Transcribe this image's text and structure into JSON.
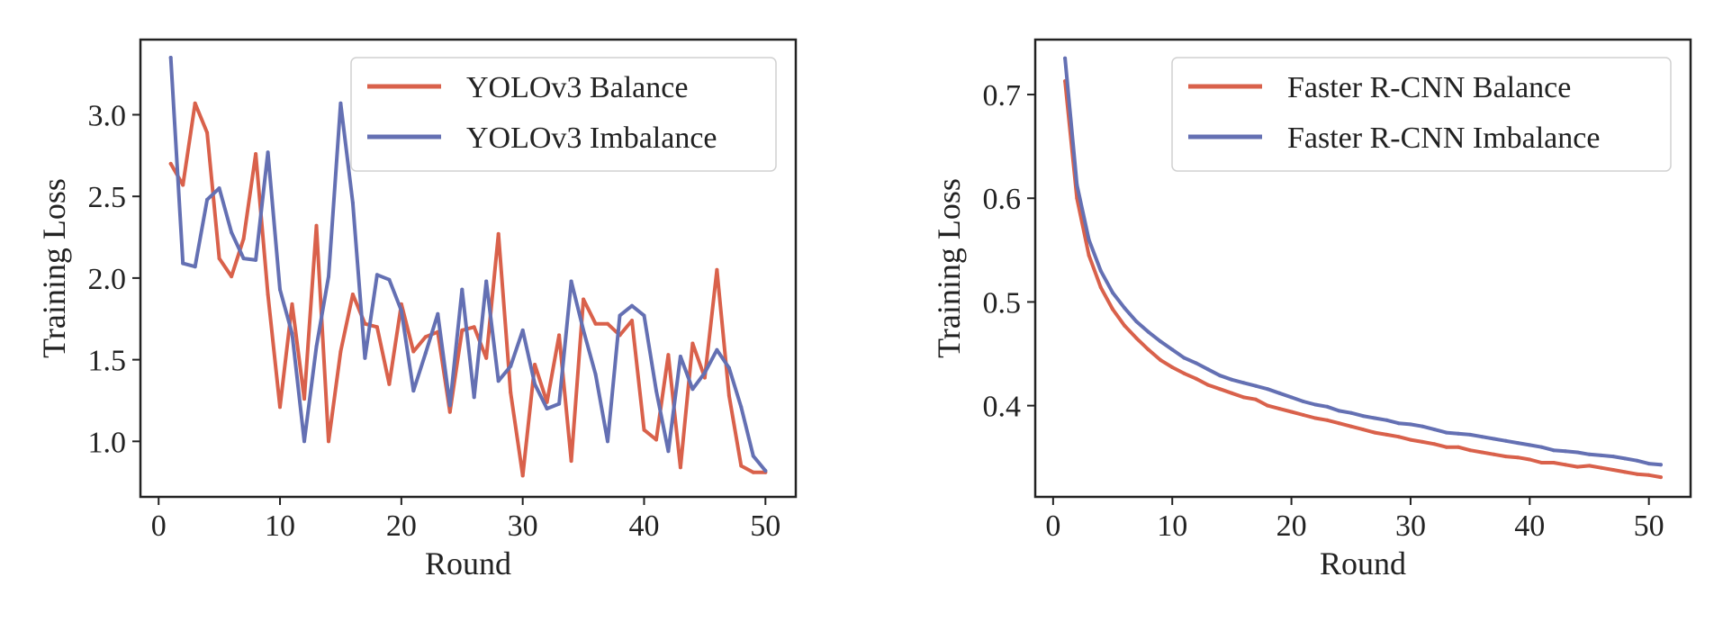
{
  "chart_data": [
    {
      "type": "line",
      "title": "",
      "xlabel": "Round",
      "ylabel": "Training Loss",
      "xlim": [
        -1.5,
        52.5
      ],
      "ylim": [
        0.66,
        3.46
      ],
      "xticks": [
        0,
        10,
        20,
        30,
        40,
        50
      ],
      "xtick_labels": [
        "0",
        "10",
        "20",
        "30",
        "40",
        "50"
      ],
      "yticks": [
        1.0,
        1.5,
        2.0,
        2.5,
        3.0
      ],
      "ytick_labels": [
        "1.0",
        "1.5",
        "2.0",
        "2.5",
        "3.0"
      ],
      "grid": false,
      "legend_position": "top-right",
      "series": [
        {
          "name": "YOLOv3 Balance",
          "color": "#d9614b",
          "x": [
            1,
            2,
            3,
            4,
            5,
            6,
            7,
            8,
            9,
            10,
            11,
            12,
            13,
            14,
            15,
            16,
            17,
            18,
            19,
            20,
            21,
            22,
            23,
            24,
            25,
            26,
            27,
            28,
            29,
            30,
            31,
            32,
            33,
            34,
            35,
            36,
            37,
            38,
            39,
            40,
            41,
            42,
            43,
            44,
            45,
            46,
            47,
            48,
            49,
            50
          ],
          "values": [
            2.7,
            2.57,
            3.07,
            2.89,
            2.12,
            2.01,
            2.24,
            2.76,
            1.9,
            1.21,
            1.84,
            1.26,
            2.32,
            1.0,
            1.55,
            1.9,
            1.72,
            1.7,
            1.35,
            1.84,
            1.55,
            1.64,
            1.67,
            1.18,
            1.68,
            1.7,
            1.51,
            2.27,
            1.3,
            0.79,
            1.47,
            1.24,
            1.65,
            0.88,
            1.87,
            1.72,
            1.72,
            1.65,
            1.74,
            1.07,
            1.01,
            1.53,
            0.84,
            1.6,
            1.39,
            2.05,
            1.28,
            0.85,
            0.81,
            0.81
          ]
        },
        {
          "name": "YOLOv3 Imbalance",
          "color": "#6470b3",
          "x": [
            1,
            2,
            3,
            4,
            5,
            6,
            7,
            8,
            9,
            10,
            11,
            12,
            13,
            14,
            15,
            16,
            17,
            18,
            19,
            20,
            21,
            22,
            23,
            24,
            25,
            26,
            27,
            28,
            29,
            30,
            31,
            32,
            33,
            34,
            35,
            36,
            37,
            38,
            39,
            40,
            41,
            42,
            43,
            44,
            45,
            46,
            47,
            48,
            49,
            50
          ],
          "values": [
            3.35,
            2.09,
            2.07,
            2.48,
            2.55,
            2.28,
            2.12,
            2.11,
            2.77,
            1.93,
            1.66,
            1.0,
            1.58,
            2.01,
            3.07,
            2.46,
            1.51,
            2.02,
            1.99,
            1.8,
            1.31,
            1.54,
            1.78,
            1.22,
            1.93,
            1.27,
            1.98,
            1.37,
            1.46,
            1.68,
            1.35,
            1.2,
            1.23,
            1.98,
            1.68,
            1.41,
            1.0,
            1.77,
            1.83,
            1.77,
            1.31,
            0.94,
            1.52,
            1.32,
            1.42,
            1.56,
            1.45,
            1.21,
            0.91,
            0.82
          ]
        }
      ]
    },
    {
      "type": "line",
      "title": "",
      "xlabel": "Round",
      "ylabel": "Training Loss",
      "xlim": [
        -1.5,
        53.5
      ],
      "ylim": [
        0.312,
        0.753
      ],
      "xticks": [
        0,
        10,
        20,
        30,
        40,
        50
      ],
      "xtick_labels": [
        "0",
        "10",
        "20",
        "30",
        "40",
        "50"
      ],
      "yticks": [
        0.4,
        0.5,
        0.6,
        0.7
      ],
      "ytick_labels": [
        "0.4",
        "0.5",
        "0.6",
        "0.7"
      ],
      "grid": false,
      "legend_position": "top-right",
      "series": [
        {
          "name": "Faster R-CNN Balance",
          "color": "#d9614b",
          "x": [
            1,
            2,
            3,
            4,
            5,
            6,
            7,
            8,
            9,
            10,
            11,
            12,
            13,
            14,
            15,
            16,
            17,
            18,
            19,
            20,
            21,
            22,
            23,
            24,
            25,
            26,
            27,
            28,
            29,
            30,
            31,
            32,
            33,
            34,
            35,
            36,
            37,
            38,
            39,
            40,
            41,
            42,
            43,
            44,
            45,
            46,
            47,
            48,
            49,
            50,
            51
          ],
          "values": [
            0.713,
            0.6,
            0.545,
            0.514,
            0.493,
            0.477,
            0.465,
            0.454,
            0.444,
            0.437,
            0.431,
            0.426,
            0.42,
            0.416,
            0.412,
            0.408,
            0.406,
            0.4,
            0.397,
            0.394,
            0.391,
            0.388,
            0.386,
            0.383,
            0.38,
            0.377,
            0.374,
            0.372,
            0.37,
            0.367,
            0.365,
            0.363,
            0.36,
            0.36,
            0.357,
            0.355,
            0.353,
            0.351,
            0.35,
            0.348,
            0.345,
            0.345,
            0.343,
            0.341,
            0.342,
            0.34,
            0.338,
            0.336,
            0.334,
            0.333,
            0.331
          ]
        },
        {
          "name": "Faster R-CNN Imbalance",
          "color": "#6470b3",
          "x": [
            1,
            2,
            3,
            4,
            5,
            6,
            7,
            8,
            9,
            10,
            11,
            12,
            13,
            14,
            15,
            16,
            17,
            18,
            19,
            20,
            21,
            22,
            23,
            24,
            25,
            26,
            27,
            28,
            29,
            30,
            31,
            32,
            33,
            34,
            35,
            36,
            37,
            38,
            39,
            40,
            41,
            42,
            43,
            44,
            45,
            46,
            47,
            48,
            49,
            50,
            51
          ],
          "values": [
            0.735,
            0.613,
            0.56,
            0.53,
            0.509,
            0.494,
            0.481,
            0.471,
            0.462,
            0.454,
            0.446,
            0.441,
            0.435,
            0.429,
            0.425,
            0.422,
            0.419,
            0.416,
            0.412,
            0.408,
            0.404,
            0.401,
            0.399,
            0.395,
            0.393,
            0.39,
            0.388,
            0.386,
            0.383,
            0.382,
            0.38,
            0.377,
            0.374,
            0.373,
            0.372,
            0.37,
            0.368,
            0.366,
            0.364,
            0.362,
            0.36,
            0.357,
            0.356,
            0.355,
            0.353,
            0.352,
            0.351,
            0.349,
            0.347,
            0.344,
            0.343
          ]
        }
      ]
    }
  ]
}
